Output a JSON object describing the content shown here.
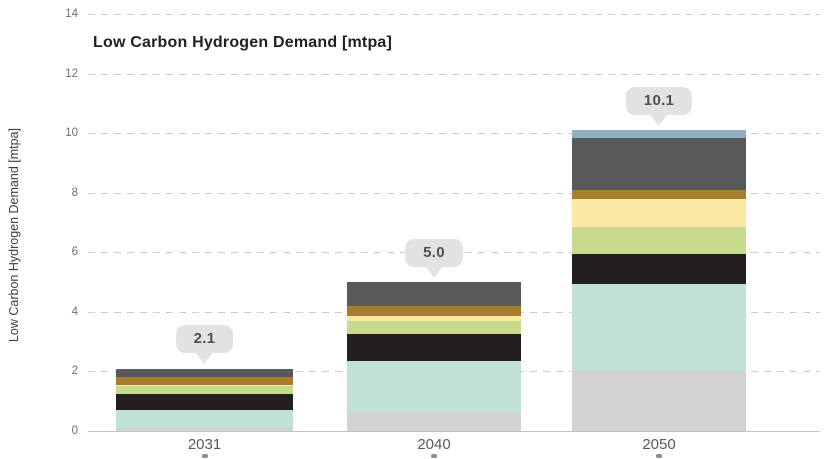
{
  "chart_data": {
    "type": "bar",
    "stacked": true,
    "title": "Low Carbon Hydrogen Demand [mtpa]",
    "ylabel": "Low Carbon Hydrogen Demand [mtpa]",
    "xlabel": "",
    "categories": [
      "2031",
      "2040",
      "2050"
    ],
    "totals_labels": [
      "2.1",
      "5.0",
      "10.1"
    ],
    "yticks": [
      0,
      2,
      4,
      6,
      8,
      10,
      12,
      14
    ],
    "ylim": [
      0,
      14
    ],
    "grid": "horizontal-dashed",
    "legend": "none",
    "series": [
      {
        "name": "light-gray-segment",
        "color": "#d2d2d3",
        "values": [
          0.1,
          0.65,
          2.0
        ]
      },
      {
        "name": "teal-segment",
        "color": "#bfe1d6",
        "values": [
          0.6,
          1.7,
          2.95
        ]
      },
      {
        "name": "black-segment",
        "color": "#231f20",
        "values": [
          0.55,
          0.9,
          1.0
        ]
      },
      {
        "name": "green-segment",
        "color": "#c7da8e",
        "values": [
          0.25,
          0.45,
          0.9
        ]
      },
      {
        "name": "yellow-segment",
        "color": "#fae9a2",
        "values": [
          0.05,
          0.15,
          0.95
        ]
      },
      {
        "name": "ochre-segment",
        "color": "#a87e2e",
        "values": [
          0.25,
          0.35,
          0.3
        ]
      },
      {
        "name": "dark-gray-segment",
        "color": "#58595b",
        "values": [
          0.3,
          0.8,
          1.75
        ]
      },
      {
        "name": "blue-gray-segment",
        "color": "#92afbe",
        "values": [
          0.0,
          0.0,
          0.27
        ]
      }
    ]
  },
  "colors": {
    "bubble_bg": "#e2e2e2",
    "bubble_text": "#4f5052",
    "grid": "#cccccc",
    "axis": "#c2c2c2",
    "tick_text": "#6f6f6f",
    "title_text": "#242021",
    "ylabel_text": "#3d3d3d",
    "xtick_text": "#58595b"
  }
}
